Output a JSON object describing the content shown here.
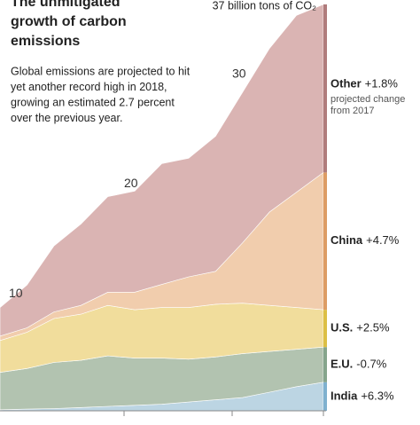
{
  "chart_data": {
    "type": "stacked-area",
    "title": [
      "The unmitigated",
      "growth of carbon",
      "emissions"
    ],
    "subtitle": [
      "Global emissions are projected to hit",
      "yet another record high in 2018,",
      "growing an estimated 2.7 percent",
      "over the previous year."
    ],
    "annotation": "37 billion tons of CO₂",
    "change_note": [
      "projected change",
      "from 2017"
    ],
    "categories": [
      null,
      null,
      null,
      null,
      null,
      null,
      null,
      null,
      null,
      null,
      null,
      null,
      null
    ],
    "ylim": [
      0,
      37.4
    ],
    "yticks": [
      10,
      20,
      30
    ],
    "series": [
      {
        "name": "India",
        "change": "+6.3%",
        "color": "#bcd5e3",
        "edge": "#7fb1cf",
        "values": [
          0.1,
          0.15,
          0.2,
          0.3,
          0.4,
          0.5,
          0.6,
          0.8,
          1.0,
          1.2,
          1.7,
          2.2,
          2.6
        ]
      },
      {
        "name": "E.U.",
        "change": "-0.7%",
        "color": "#b2c3b0",
        "edge": "#86a58c",
        "values": [
          3.4,
          3.7,
          4.2,
          4.3,
          4.6,
          4.3,
          4.2,
          3.9,
          3.9,
          4.0,
          3.7,
          3.4,
          3.2
        ]
      },
      {
        "name": "U.S.",
        "change": "+2.5%",
        "color": "#f1dd9c",
        "edge": "#dcbf45",
        "values": [
          2.9,
          3.3,
          4.0,
          4.2,
          4.6,
          4.4,
          4.6,
          4.7,
          4.8,
          4.6,
          4.2,
          3.8,
          3.4
        ]
      },
      {
        "name": "China",
        "change": "+4.7%",
        "color": "#f1cdad",
        "edge": "#dd9c64",
        "values": [
          0.4,
          0.4,
          0.6,
          0.8,
          1.2,
          1.6,
          2.1,
          2.8,
          3.0,
          5.5,
          8.5,
          10.5,
          12.5
        ]
      },
      {
        "name": "Other",
        "change": "+1.8%",
        "color": "#dab4b3",
        "edge": "#b07c7c",
        "values": [
          2.6,
          3.9,
          6.0,
          7.4,
          8.7,
          9.2,
          11.0,
          10.8,
          12.3,
          13.7,
          14.9,
          16.1,
          15.3
        ]
      }
    ]
  }
}
